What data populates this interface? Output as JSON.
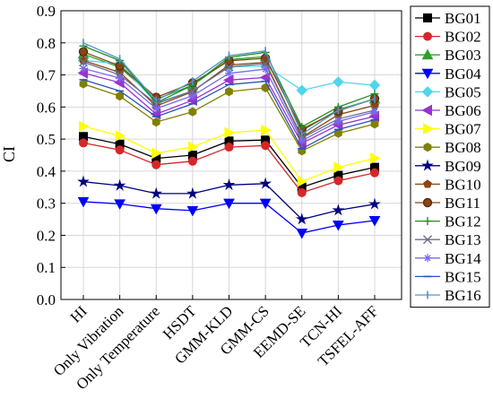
{
  "chart_data": {
    "type": "line",
    "ylabel": "CI",
    "ylim": [
      0,
      0.9
    ],
    "yticks": [
      0.0,
      0.1,
      0.2,
      0.3,
      0.4,
      0.5,
      0.6,
      0.7,
      0.8,
      0.9
    ],
    "ytick_labels": [
      "0.0",
      "0.1",
      "0.2",
      "0.3",
      "0.4",
      "0.5",
      "0.6",
      "0.7",
      "0.8",
      "0.9"
    ],
    "categories": [
      "HI",
      "Only Vibration",
      "Only Temperature",
      "HSDT",
      "GMM-KLD",
      "GMM-CS",
      "EEMD-SE",
      "TCN-HI",
      "TSFEL-AFF"
    ],
    "grid": true,
    "legend_position": "right",
    "series": [
      {
        "name": "BG01",
        "color": "#000000",
        "marker": "square",
        "values": [
          0.508,
          0.484,
          0.44,
          0.45,
          0.494,
          0.497,
          0.35,
          0.387,
          0.412
        ]
      },
      {
        "name": "BG02",
        "color": "#d62728",
        "marker": "circle",
        "values": [
          0.488,
          0.466,
          0.42,
          0.431,
          0.475,
          0.48,
          0.333,
          0.37,
          0.395
        ]
      },
      {
        "name": "BG03",
        "color": "#2ca02c",
        "marker": "triangle",
        "values": [
          0.765,
          0.724,
          0.624,
          0.668,
          0.748,
          0.757,
          0.526,
          0.592,
          0.625
        ]
      },
      {
        "name": "BG04",
        "color": "#0000ff",
        "marker": "triangle-down",
        "values": [
          0.305,
          0.298,
          0.283,
          0.277,
          0.3,
          0.3,
          0.207,
          0.232,
          0.246
        ]
      },
      {
        "name": "BG05",
        "color": "#4fd5ee",
        "marker": "diamond",
        "values": [
          0.745,
          0.735,
          0.613,
          0.65,
          0.725,
          0.728,
          0.652,
          0.678,
          0.668
        ]
      },
      {
        "name": "BG06",
        "color": "#9933cc",
        "marker": "triangle-left",
        "values": [
          0.706,
          0.676,
          0.578,
          0.621,
          0.684,
          0.692,
          0.487,
          0.544,
          0.571
        ]
      },
      {
        "name": "BG07",
        "color": "#ffff00",
        "marker": "triangle-right",
        "values": [
          0.54,
          0.51,
          0.456,
          0.476,
          0.52,
          0.528,
          0.368,
          0.412,
          0.44
        ]
      },
      {
        "name": "BG08",
        "color": "#808000",
        "marker": "hexagon",
        "values": [
          0.672,
          0.634,
          0.553,
          0.585,
          0.648,
          0.66,
          0.463,
          0.518,
          0.547
        ]
      },
      {
        "name": "BG09",
        "color": "#000080",
        "marker": "star",
        "values": [
          0.367,
          0.355,
          0.33,
          0.33,
          0.357,
          0.361,
          0.25,
          0.278,
          0.297
        ]
      },
      {
        "name": "BG10",
        "color": "#8b4513",
        "marker": "pentagon",
        "values": [
          0.745,
          0.708,
          0.603,
          0.648,
          0.731,
          0.739,
          0.506,
          0.576,
          0.605
        ]
      },
      {
        "name": "BG11",
        "color": "#8b4513",
        "marker": "circle-dot",
        "values": [
          0.772,
          0.728,
          0.63,
          0.675,
          0.744,
          0.752,
          0.531,
          0.588,
          0.626
        ]
      },
      {
        "name": "BG12",
        "color": "#228b22",
        "marker": "plus",
        "values": [
          0.79,
          0.745,
          0.613,
          0.668,
          0.755,
          0.77,
          0.538,
          0.6,
          0.641
        ]
      },
      {
        "name": "BG13",
        "color": "#6e6e8a",
        "marker": "x",
        "values": [
          0.74,
          0.7,
          0.61,
          0.65,
          0.725,
          0.735,
          0.503,
          0.563,
          0.59
        ]
      },
      {
        "name": "BG14",
        "color": "#7b68ee",
        "marker": "asterisk",
        "values": [
          0.72,
          0.69,
          0.595,
          0.635,
          0.705,
          0.718,
          0.495,
          0.555,
          0.585
        ]
      },
      {
        "name": "BG15",
        "color": "#2a52be",
        "marker": "dash",
        "values": [
          0.685,
          0.65,
          0.57,
          0.61,
          0.67,
          0.68,
          0.47,
          0.53,
          0.56
        ]
      },
      {
        "name": "BG16",
        "color": "#4f94cd",
        "marker": "vbar",
        "values": [
          0.8,
          0.75,
          0.62,
          0.68,
          0.76,
          0.775,
          0.515,
          0.59,
          0.625
        ]
      }
    ]
  }
}
